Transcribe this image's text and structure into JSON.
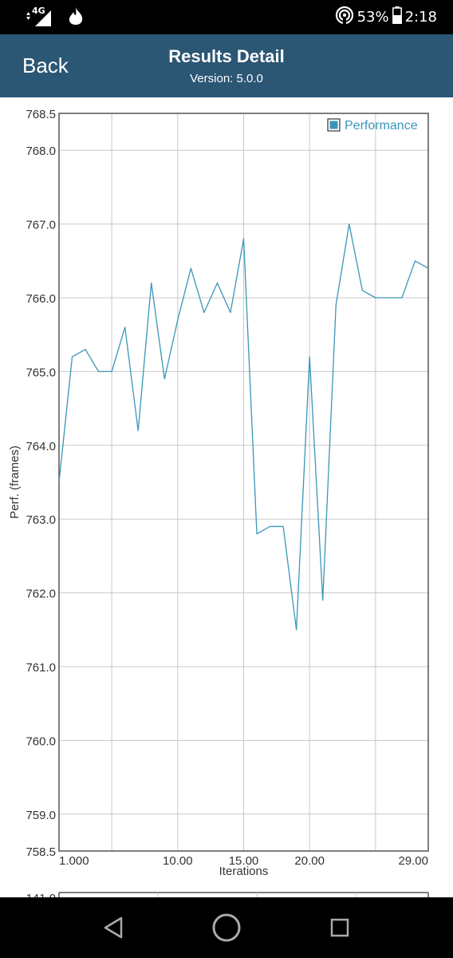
{
  "status_bar": {
    "network": "4G",
    "battery": "53%",
    "time": "2:18",
    "icons": [
      "signal-icon",
      "fire-icon",
      "hotspot-icon",
      "battery-icon"
    ]
  },
  "header": {
    "back_label": "Back",
    "title": "Results Detail",
    "version": "Version: 5.0.0",
    "background": "#2b5674"
  },
  "chart_data": {
    "type": "line",
    "title": "",
    "xlabel": "Iterations",
    "ylabel": "Perf. (frames)",
    "xlim": [
      1,
      29
    ],
    "ylim": [
      758.5,
      768.5
    ],
    "x_tick_labels": [
      {
        "value": 1,
        "label": "1.000"
      },
      {
        "value": 10,
        "label": "10.00"
      },
      {
        "value": 15,
        "label": "15.00"
      },
      {
        "value": 20,
        "label": "20.00"
      },
      {
        "value": 29,
        "label": "29.00"
      }
    ],
    "x_grid": [
      5,
      10,
      15,
      20,
      25
    ],
    "y_tick_labels": [
      {
        "value": 768.5,
        "label": "768.5"
      },
      {
        "value": 768,
        "label": "768.0"
      },
      {
        "value": 767,
        "label": "767.0"
      },
      {
        "value": 766,
        "label": "766.0"
      },
      {
        "value": 765,
        "label": "765.0"
      },
      {
        "value": 764,
        "label": "764.0"
      },
      {
        "value": 763,
        "label": "763.0"
      },
      {
        "value": 762,
        "label": "762.0"
      },
      {
        "value": 761,
        "label": "761.0"
      },
      {
        "value": 760,
        "label": "760.0"
      },
      {
        "value": 759,
        "label": "759.0"
      },
      {
        "value": 758.5,
        "label": "758.5"
      }
    ],
    "y_grid": [
      768,
      767,
      766,
      765,
      764,
      763,
      762,
      761,
      760,
      759
    ],
    "grid": true,
    "legend_position": "top-right",
    "series": [
      {
        "name": "Performance",
        "color": "#3a96b8",
        "x": [
          1,
          2,
          3,
          4,
          5,
          6,
          7,
          8,
          9,
          10,
          11,
          12,
          13,
          14,
          15,
          16,
          17,
          18,
          19,
          20,
          21,
          22,
          23,
          24,
          25,
          26,
          27,
          28,
          29
        ],
        "y": [
          763.5,
          765.2,
          765.3,
          765.0,
          765.0,
          765.6,
          764.2,
          766.2,
          764.9,
          765.7,
          766.4,
          765.8,
          766.2,
          765.8,
          766.8,
          762.8,
          762.9,
          762.9,
          761.5,
          765.2,
          761.9,
          765.9,
          767.0,
          766.1,
          766.0,
          766.0,
          766.0,
          766.5,
          766.4
        ]
      }
    ],
    "next_chart_first_label": "141.0"
  }
}
